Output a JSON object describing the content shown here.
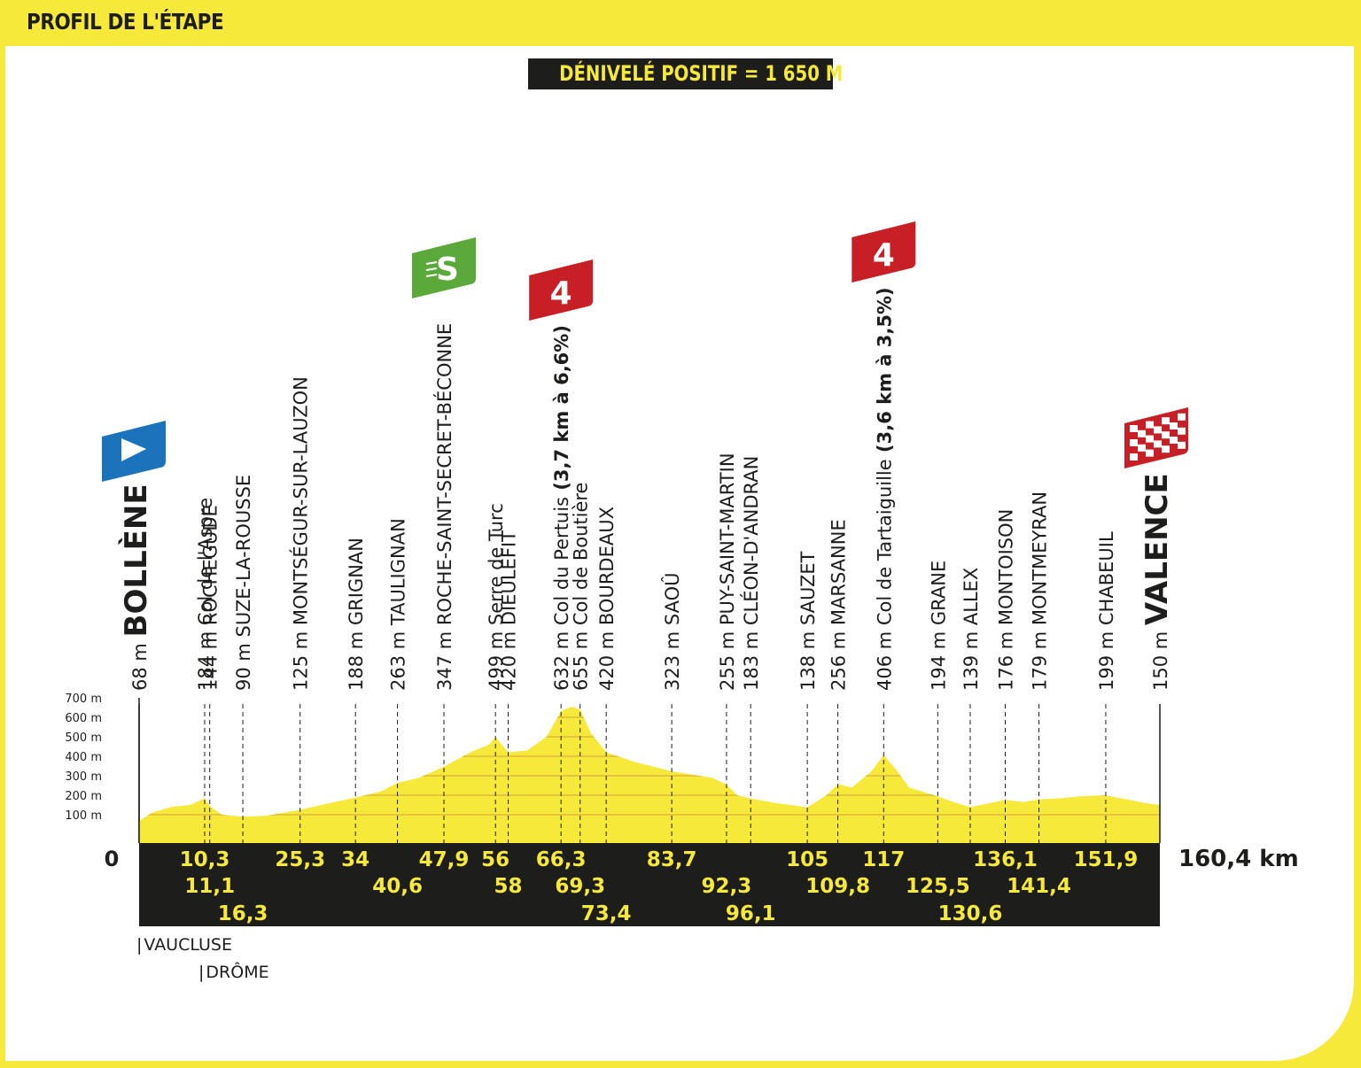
{
  "header": {
    "title": "PROFIL DE L'ÉTAPE"
  },
  "elevation_gain": "DÉNIVELÉ POSITIF = 1 650 M",
  "regions": [
    "VAUCLUSE",
    "DRÔME"
  ],
  "colors": {
    "yellow": "#f7e93a",
    "black": "#1d1d1b",
    "sprint_green": "#5ba93b",
    "climb_red": "#c71f25",
    "start_blue": "#1b74bb"
  },
  "chart_data": {
    "type": "area",
    "xlabel": "",
    "ylabel": "",
    "x_range": [
      0,
      160.4
    ],
    "y_range": [
      0,
      700
    ],
    "y_ticks": [
      "100 m",
      "200 m",
      "300 m",
      "400 m",
      "500 m",
      "600 m",
      "700 m"
    ],
    "x_start_label": "0",
    "x_end_label": "160,4 km",
    "profile": {
      "x": [
        0,
        2,
        5,
        8,
        10.3,
        11.1,
        13,
        16.3,
        20,
        25.3,
        30,
        34,
        38,
        40.6,
        44,
        47.9,
        52,
        55,
        56,
        58,
        61,
        64,
        66.3,
        68,
        69.3,
        71,
        73.4,
        78,
        83.7,
        88,
        90,
        92.3,
        94,
        96.1,
        100,
        105,
        108,
        109.8,
        112,
        115,
        117,
        119,
        121,
        125.5,
        128,
        130.6,
        133,
        136.1,
        139,
        141.4,
        145,
        148,
        151.9,
        155,
        158,
        160.4
      ],
      "y": [
        68,
        110,
        140,
        150,
        184,
        144,
        100,
        90,
        95,
        125,
        160,
        188,
        220,
        263,
        290,
        347,
        420,
        460,
        499,
        420,
        430,
        500,
        632,
        655,
        640,
        520,
        420,
        370,
        323,
        300,
        290,
        255,
        200,
        183,
        160,
        138,
        200,
        256,
        240,
        320,
        406,
        330,
        240,
        194,
        165,
        139,
        155,
        176,
        165,
        179,
        185,
        195,
        199,
        180,
        160,
        150
      ]
    },
    "waypoints": [
      {
        "km": 0,
        "alt": "68 m",
        "name": "BOLLÈNE",
        "km_label": "",
        "row": 0,
        "type": "start"
      },
      {
        "km": 10.3,
        "alt": "184 m",
        "name": "Col de l'Aspre",
        "km_label": "10,3",
        "row": 0,
        "type": "minor"
      },
      {
        "km": 11.1,
        "alt": "144 m",
        "name": "ROCHEGUDE",
        "km_label": "11,1",
        "row": 1,
        "type": "town"
      },
      {
        "km": 16.3,
        "alt": "90 m",
        "name": "SUZE-LA-ROUSSE",
        "km_label": "16,3",
        "row": 2,
        "type": "town"
      },
      {
        "km": 25.3,
        "alt": "125 m",
        "name": "MONTSÉGUR-SUR-LAUZON",
        "km_label": "25,3",
        "row": 0,
        "type": "town"
      },
      {
        "km": 34,
        "alt": "188 m",
        "name": "GRIGNAN",
        "km_label": "34",
        "row": 0,
        "type": "town"
      },
      {
        "km": 40.6,
        "alt": "263 m",
        "name": "TAULIGNAN",
        "km_label": "40,6",
        "row": 1,
        "type": "town"
      },
      {
        "km": 47.9,
        "alt": "347 m",
        "name": "ROCHE-SAINT-SECRET-BÉCONNE",
        "km_label": "47,9",
        "row": 0,
        "type": "sprint"
      },
      {
        "km": 56,
        "alt": "499 m",
        "name": "Serre de Turc",
        "km_label": "56",
        "row": 0,
        "type": "minor"
      },
      {
        "km": 58,
        "alt": "420 m",
        "name": "DIEULEFIT",
        "km_label": "58",
        "row": 1,
        "type": "town"
      },
      {
        "km": 66.3,
        "alt": "632 m",
        "name": "Col du Pertuis",
        "extra": "(3,7 km à 6,6%)",
        "km_label": "66,3",
        "row": 0,
        "type": "climb"
      },
      {
        "km": 69.3,
        "alt": "655 m",
        "name": "Col de Boutière",
        "km_label": "69,3",
        "row": 1,
        "type": "minor"
      },
      {
        "km": 73.4,
        "alt": "420 m",
        "name": "BOURDEAUX",
        "km_label": "73,4",
        "row": 2,
        "type": "town"
      },
      {
        "km": 83.7,
        "alt": "323 m",
        "name": "SAOÛ",
        "km_label": "83,7",
        "row": 0,
        "type": "town"
      },
      {
        "km": 92.3,
        "alt": "255 m",
        "name": "PUY-SAINT-MARTIN",
        "km_label": "92,3",
        "row": 1,
        "type": "town"
      },
      {
        "km": 96.1,
        "alt": "183 m",
        "name": "CLÉON-D'ANDRAN",
        "km_label": "96,1",
        "row": 2,
        "type": "town"
      },
      {
        "km": 105,
        "alt": "138 m",
        "name": "SAUZET",
        "km_label": "105",
        "row": 0,
        "type": "town"
      },
      {
        "km": 109.8,
        "alt": "256 m",
        "name": "MARSANNE",
        "km_label": "109,8",
        "row": 1,
        "type": "town"
      },
      {
        "km": 117,
        "alt": "406 m",
        "name": "Col de Tartaiguille",
        "extra": "(3,6 km à 3,5%)",
        "km_label": "117",
        "row": 0,
        "type": "climb"
      },
      {
        "km": 125.5,
        "alt": "194 m",
        "name": "GRANE",
        "km_label": "125,5",
        "row": 1,
        "type": "town"
      },
      {
        "km": 130.6,
        "alt": "139 m",
        "name": "ALLEX",
        "km_label": "130,6",
        "row": 2,
        "type": "town"
      },
      {
        "km": 136.1,
        "alt": "176 m",
        "name": "MONTOISON",
        "km_label": "136,1",
        "row": 0,
        "type": "town"
      },
      {
        "km": 141.4,
        "alt": "179 m",
        "name": "MONTMEYRAN",
        "km_label": "141,4",
        "row": 1,
        "type": "town"
      },
      {
        "km": 151.9,
        "alt": "199 m",
        "name": "CHABEUIL",
        "km_label": "151,9",
        "row": 0,
        "type": "town"
      },
      {
        "km": 160.4,
        "alt": "150 m",
        "name": "VALENCE",
        "km_label": "",
        "row": 0,
        "type": "finish"
      }
    ],
    "markers": [
      {
        "kind": "start",
        "km": 0
      },
      {
        "kind": "sprint",
        "km": 47.9,
        "label": "S"
      },
      {
        "kind": "climb",
        "km": 66.3,
        "label": "4"
      },
      {
        "kind": "climb",
        "km": 117,
        "label": "4"
      },
      {
        "kind": "finish",
        "km": 160.4
      }
    ]
  }
}
